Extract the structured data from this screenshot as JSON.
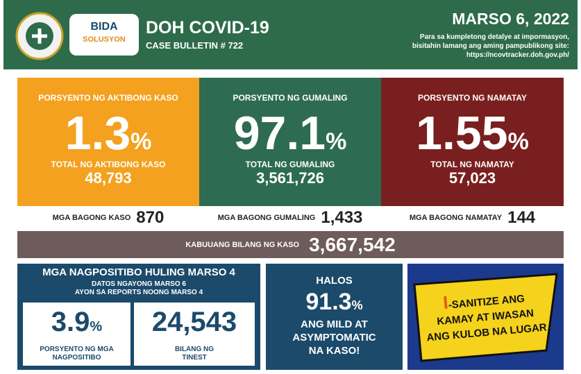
{
  "header": {
    "logo_lines": [
      "BIDA",
      "SOLUSYON"
    ],
    "title": "DOH COVID-19",
    "subtitle": "CASE BULLETIN # 722",
    "date": "MARSO 6, 2022",
    "note_lines": [
      "Para sa kumpletong detalye at impormasyon,",
      "bisitahin lamang ang aming pampublikong site:",
      "https://ncovtracker.doh.gov.ph/"
    ]
  },
  "stats": [
    {
      "label": "PORSYENTO NG AKTIBONG KASO",
      "percent": "1.3",
      "unit": "%",
      "total_label": "TOTAL NG AKTIBONG KASO",
      "total": "48,793",
      "new_label": "MGA BAGONG KASO",
      "new": "870"
    },
    {
      "label": "PORSYENTO NG GUMALING",
      "percent": "97.1",
      "unit": "%",
      "total_label": "TOTAL NG GUMALING",
      "total": "3,561,726",
      "new_label": "MGA BAGONG GUMALING",
      "new": "1,433"
    },
    {
      "label": "PORSYENTO NG NAMATAY",
      "percent": "1.55",
      "unit": "%",
      "total_label": "TOTAL NG NAMATAY",
      "total": "57,023",
      "new_label": "MGA BAGONG NAMATAY",
      "new": "144"
    }
  ],
  "total": {
    "label": "KABUUANG BILANG NG KASO",
    "value": "3,667,542"
  },
  "positivity": {
    "title": "MGA NAGPOSITIBO HULING MARSO 4",
    "subtitle_lines": [
      "DATOS NGAYONG MARSO 6",
      "AYON SA REPORTS NOONG MARSO 4"
    ],
    "rate": "3.9",
    "unit": "%",
    "rate_label_lines": [
      "PORSYENTO NG MGA",
      "NAGPOSITIBO"
    ],
    "tested": "24,543",
    "tested_label_lines": [
      "BILANG NG",
      "TINEST"
    ]
  },
  "mild": {
    "top": "HALOS",
    "value": "91.3",
    "unit": "%",
    "lines": [
      "ANG MILD AT",
      "ASYMPTOMATIC",
      "NA KASO!"
    ]
  },
  "poster": {
    "lead": "I",
    "lines": [
      "-SANITIZE ANG",
      "KAMAY AT IWASAN",
      "ANG KULOB NA LUGAR"
    ]
  }
}
